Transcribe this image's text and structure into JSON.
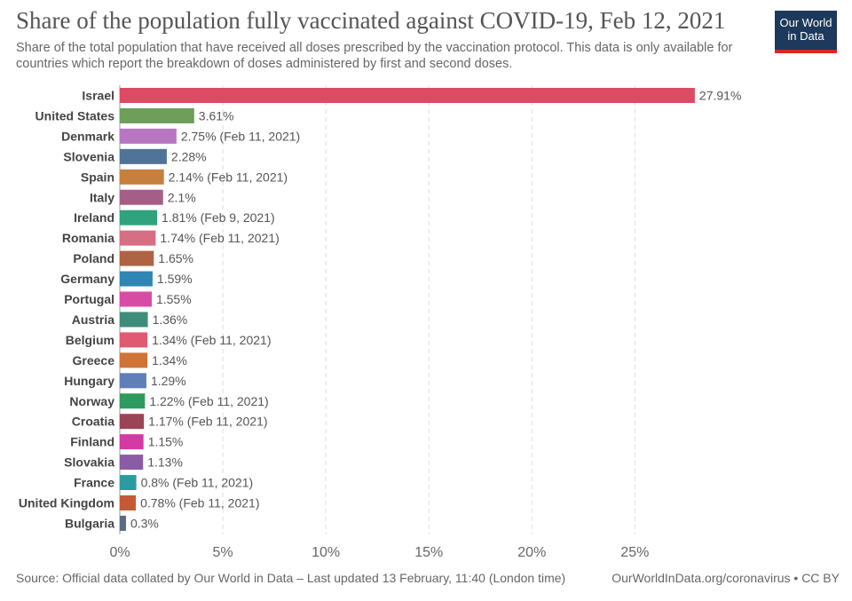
{
  "header": {
    "title": "Share of the population fully vaccinated against COVID-19, Feb 12, 2021",
    "subtitle": "Share of the total population that have received all doses prescribed by the vaccination protocol. This data is only available for countries which report the breakdown of doses administered by first and second doses.",
    "logo_line1": "Our World",
    "logo_line2": "in Data"
  },
  "footer": {
    "source": "Source: Official data collated by Our World in Data – Last updated 13 February, 11:40 (London time)",
    "site": "OurWorldInData.org/coronavirus • CC BY"
  },
  "chart_data": {
    "type": "bar",
    "orientation": "horizontal",
    "xlim": [
      0,
      28
    ],
    "ticks": [
      0,
      5,
      10,
      15,
      20,
      25
    ],
    "tick_labels": [
      "0%",
      "5%",
      "10%",
      "15%",
      "20%",
      "25%"
    ],
    "grid": true,
    "categories": [
      "Israel",
      "United States",
      "Denmark",
      "Slovenia",
      "Spain",
      "Italy",
      "Ireland",
      "Romania",
      "Poland",
      "Germany",
      "Portugal",
      "Austria",
      "Belgium",
      "Greece",
      "Hungary",
      "Norway",
      "Croatia",
      "Finland",
      "Slovakia",
      "France",
      "United Kingdom",
      "Bulgaria"
    ],
    "values": [
      27.91,
      3.61,
      2.75,
      2.28,
      2.14,
      2.1,
      1.81,
      1.74,
      1.65,
      1.59,
      1.55,
      1.36,
      1.34,
      1.34,
      1.29,
      1.22,
      1.17,
      1.15,
      1.13,
      0.8,
      0.78,
      0.3
    ],
    "value_labels": [
      "27.91%",
      "3.61%",
      "2.75% (Feb 11, 2021)",
      "2.28%",
      "2.14% (Feb 11, 2021)",
      "2.1%",
      "1.81% (Feb 9, 2021)",
      "1.74% (Feb 11, 2021)",
      "1.65%",
      "1.59%",
      "1.55%",
      "1.36%",
      "1.34% (Feb 11, 2021)",
      "1.34%",
      "1.29%",
      "1.22% (Feb 11, 2021)",
      "1.17% (Feb 11, 2021)",
      "1.15%",
      "1.13%",
      "0.8% (Feb 11, 2021)",
      "0.78% (Feb 11, 2021)",
      "0.3%"
    ],
    "colors": [
      "#dd4a64",
      "#6d9e5a",
      "#b876c2",
      "#4f7497",
      "#c77f3d",
      "#a55f87",
      "#2fa27e",
      "#d66e84",
      "#b06245",
      "#2f85b3",
      "#d84ba5",
      "#3f8c7a",
      "#e05a72",
      "#cf7437",
      "#5f7fb8",
      "#2f9a5d",
      "#9a4556",
      "#d43aa3",
      "#8a5ca6",
      "#2b9ba0",
      "#c45a35",
      "#5c6b82"
    ]
  }
}
